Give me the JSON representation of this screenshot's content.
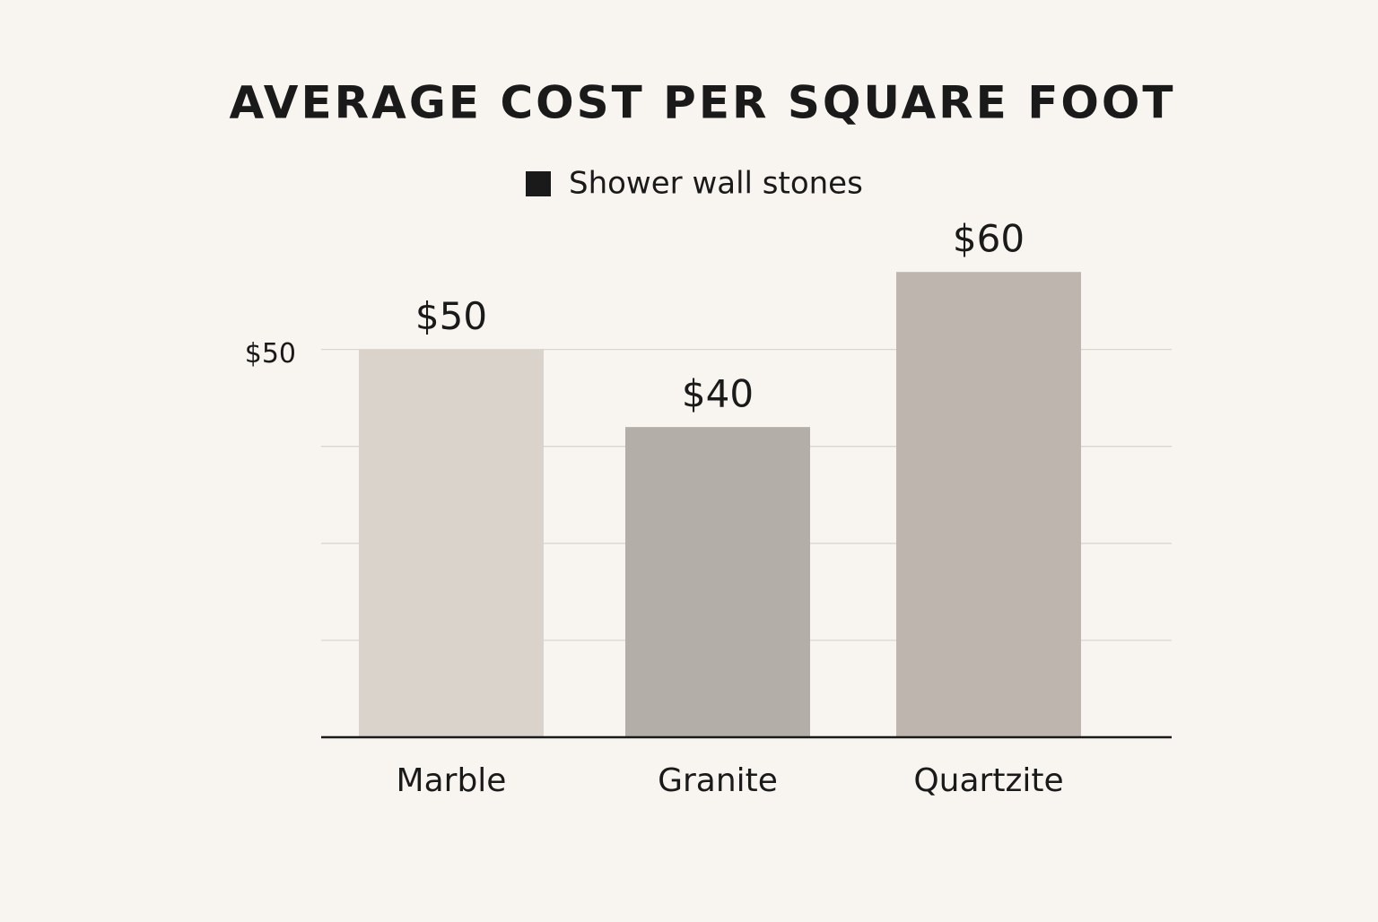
{
  "chart_data": {
    "type": "bar",
    "title": "AVERAGE COST PER SQUARE FOOT",
    "legend_color": "#1a1a1a",
    "categories": [
      "Marble",
      "Granite",
      "Quartzite"
    ],
    "series": [
      {
        "name": "Shower wall stones",
        "colors": [
          "#d9d3cc",
          "#b4aea8",
          "#bdb5ae"
        ],
        "values": [
          50,
          40,
          60
        ],
        "value_labels": [
          "$50",
          "$40",
          "$60"
        ]
      }
    ],
    "ylim": [
      0,
      65
    ],
    "yticks": [
      {
        "value": 50,
        "label": "$50"
      }
    ],
    "grid_lines": [
      12.5,
      25,
      37.5,
      50
    ],
    "grid": true
  }
}
